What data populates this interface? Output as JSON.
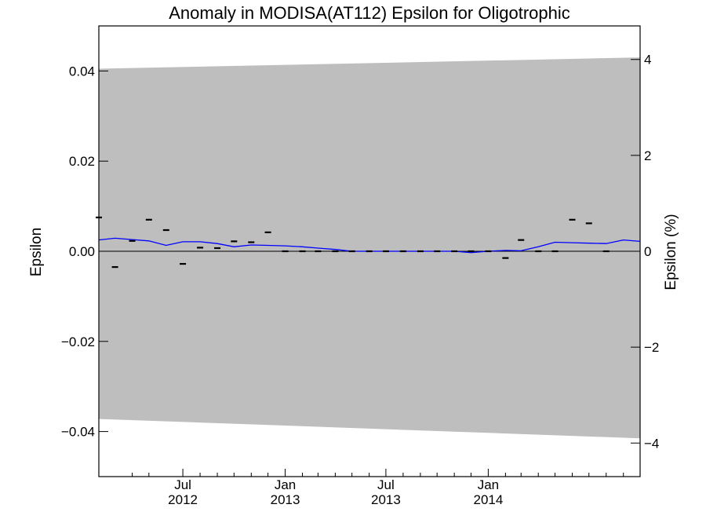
{
  "chart_data": {
    "type": "line",
    "title": "Anomaly in MODISA(AT112) Epsilon for Oligotrophic",
    "ylabel": "Epsilon",
    "y2label": "Epsilon (%)",
    "x_range": [
      "2012-02-01",
      "2014-10-01"
    ],
    "ylim": [
      -0.05,
      0.05
    ],
    "y2lim": [
      -4.7,
      4.7
    ],
    "yticks": [
      {
        "value": 0.04,
        "label": "0.04"
      },
      {
        "value": 0.02,
        "label": "0.02"
      },
      {
        "value": 0.0,
        "label": "0.00"
      },
      {
        "value": -0.02,
        "label": "−0.02"
      },
      {
        "value": -0.04,
        "label": "−0.04"
      }
    ],
    "y2ticks": [
      {
        "value": 4,
        "label": "4"
      },
      {
        "value": 2,
        "label": "2"
      },
      {
        "value": 0,
        "label": "0"
      },
      {
        "value": -2,
        "label": "−2"
      },
      {
        "value": -4,
        "label": "−4"
      }
    ],
    "xticks": [
      {
        "date": "2012-07-01",
        "month": "Jul",
        "year": "2012"
      },
      {
        "date": "2013-01-01",
        "month": "Jan",
        "year": "2013"
      },
      {
        "date": "2013-07-01",
        "month": "Jul",
        "year": "2013"
      },
      {
        "date": "2014-01-01",
        "month": "Jan",
        "year": "2014"
      }
    ],
    "xminor": [
      "2012-02-01",
      "2012-04-01",
      "2012-05-01",
      "2012-08-01",
      "2012-09-01",
      "2012-10-01",
      "2012-11-01",
      "2012-12-01",
      "2013-02-01",
      "2013-03-01",
      "2013-04-01",
      "2013-05-01",
      "2013-06-01",
      "2013-08-01",
      "2013-09-01",
      "2013-10-01",
      "2013-11-01",
      "2013-12-01",
      "2014-02-01",
      "2014-03-01",
      "2014-04-01",
      "2014-05-01",
      "2014-06-01",
      "2014-07-01",
      "2014-08-01",
      "2014-09-01"
    ],
    "band": {
      "x": [
        "2012-02-01",
        "2014-10-01"
      ],
      "upper": [
        0.0405,
        0.043
      ],
      "lower": [
        -0.0372,
        -0.0415
      ],
      "color": "#bebebe"
    },
    "reference_line": {
      "y": 0.0,
      "color": "#000000"
    },
    "series": [
      {
        "style": "line",
        "color": "#0000ff",
        "x": [
          "2012-02-01",
          "2012-03-01",
          "2012-04-01",
          "2012-05-01",
          "2012-06-01",
          "2012-07-01",
          "2012-08-01",
          "2012-09-01",
          "2012-10-01",
          "2012-11-01",
          "2012-12-01",
          "2013-01-01",
          "2013-02-01",
          "2013-03-01",
          "2013-04-01",
          "2013-05-01",
          "2013-06-01",
          "2013-07-01",
          "2013-08-01",
          "2013-09-01",
          "2013-10-01",
          "2013-11-01",
          "2013-12-01",
          "2014-01-01",
          "2014-02-01",
          "2014-03-01",
          "2014-04-01",
          "2014-05-01",
          "2014-06-01",
          "2014-07-01",
          "2014-08-01",
          "2014-09-01",
          "2014-10-01"
        ],
        "y": [
          0.0025,
          0.0029,
          0.0026,
          0.0023,
          0.0013,
          0.0021,
          0.0021,
          0.0017,
          0.001,
          0.0014,
          0.0013,
          0.0012,
          0.001,
          0.0007,
          0.0004,
          0.0,
          0.0,
          0.0,
          0.0,
          0.0,
          0.0,
          0.0,
          -0.0003,
          0.0,
          0.0002,
          0.0001,
          0.001,
          0.002,
          0.0019,
          0.0018,
          0.0017,
          0.0025,
          0.0022
        ]
      },
      {
        "style": "dash-marker",
        "color": "#000000",
        "x": [
          "2012-02-01",
          "2012-03-01",
          "2012-04-01",
          "2012-05-01",
          "2012-06-01",
          "2012-07-01",
          "2012-08-01",
          "2012-09-01",
          "2012-10-01",
          "2012-11-01",
          "2012-12-01",
          "2013-01-01",
          "2013-02-01",
          "2013-03-01",
          "2013-04-01",
          "2013-05-01",
          "2013-06-01",
          "2013-07-01",
          "2013-08-01",
          "2013-09-01",
          "2013-10-01",
          "2013-11-01",
          "2013-12-01",
          "2014-01-01",
          "2014-02-01",
          "2014-03-01",
          "2014-04-01",
          "2014-05-01",
          "2014-06-01",
          "2014-07-01",
          "2014-08-01"
        ],
        "y": [
          0.0075,
          -0.0035,
          0.0023,
          0.007,
          0.0047,
          -0.0028,
          0.0008,
          0.0007,
          0.0022,
          0.002,
          0.0042,
          0.0,
          0.0,
          0.0,
          0.0,
          0.0,
          0.0,
          0.0,
          0.0,
          0.0,
          0.0,
          0.0,
          0.0,
          0.0,
          -0.0015,
          0.0025,
          0.0,
          0.0,
          0.007,
          0.0062,
          0.0
        ]
      }
    ]
  }
}
